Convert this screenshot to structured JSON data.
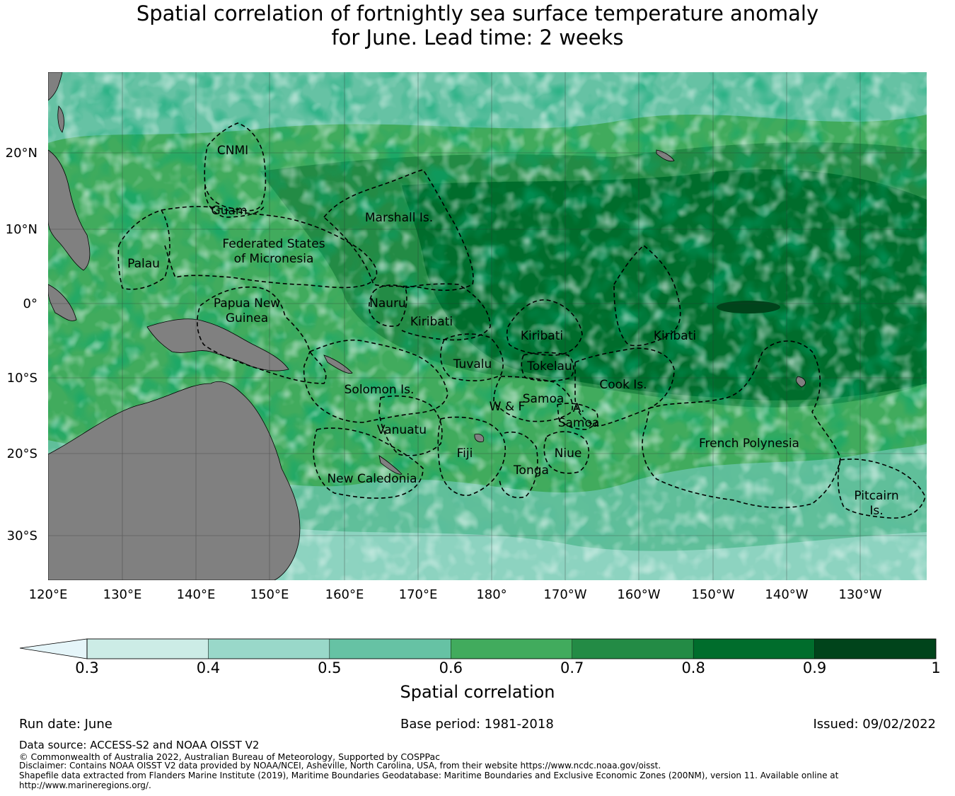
{
  "title": {
    "line1": "Spatial correlation of fortnightly sea surface temperature anomaly",
    "line2": "for June. Lead time: 2 weeks"
  },
  "map": {
    "lat_ticks": [
      "20°N",
      "10°N",
      "0°",
      "10°S",
      "20°S",
      "30°S"
    ],
    "lon_ticks": [
      "120°E",
      "130°E",
      "140°E",
      "150°E",
      "160°E",
      "170°E",
      "180°",
      "170°W",
      "160°W",
      "150°W",
      "140°W",
      "130°W"
    ],
    "labels": {
      "cnmi": "CNMI",
      "guam": "Guam",
      "marshall": "Marshall Is.",
      "fsm1": "Federated States",
      "fsm2": "of Micronesia",
      "palau": "Palau",
      "png1": "Papua New",
      "png2": "Guinea",
      "nauru": "Nauru",
      "kiribati_w": "Kiribati",
      "kiribati_c": "Kiribati",
      "kiribati_e": "Kiribati",
      "tuvalu": "Tuvalu",
      "tokelau": "Tokelau",
      "solomon": "Solomon Is.",
      "samoa": "Samoa",
      "wf": "W & F",
      "asamoa1": "A.",
      "asamoa2": "Samoa",
      "cook": "Cook Is.",
      "vanuatu": "Vanuatu",
      "fiji": "Fiji",
      "niue": "Niue",
      "tonga": "Tonga",
      "frpoly": "French Polynesia",
      "newcal": "New Caledonia",
      "pitcairn1": "Pitcairn",
      "pitcairn2": "Is."
    },
    "colors": {
      "land": "#808080",
      "grid": "#2f2f2f",
      "ocean_base": "#41ab5d"
    }
  },
  "colorbar": {
    "title": "Spatial correlation",
    "ticks": [
      "0.3",
      "0.4",
      "0.5",
      "0.6",
      "0.7",
      "0.8",
      "0.9",
      "1"
    ],
    "under_color": "#e5f5f9",
    "bins": [
      {
        "from": 0.3,
        "to": 0.4,
        "color": "#ccece6"
      },
      {
        "from": 0.4,
        "to": 0.5,
        "color": "#99d8c9"
      },
      {
        "from": 0.5,
        "to": 0.6,
        "color": "#66c2a4"
      },
      {
        "from": 0.6,
        "to": 0.7,
        "color": "#41ab5d"
      },
      {
        "from": 0.7,
        "to": 0.8,
        "color": "#238b45"
      },
      {
        "from": 0.8,
        "to": 0.9,
        "color": "#006d2c"
      },
      {
        "from": 0.9,
        "to": 1.0,
        "color": "#00441b"
      }
    ]
  },
  "meta": {
    "run_date": "Run date: June",
    "base_period": "Base period: 1981-2018",
    "issued": "Issued: 09/02/2022"
  },
  "footer": {
    "source": "Data source: ACCESS-S2 and NOAA OISST V2",
    "copyright": "© Commonwealth of Australia 2022, Australian Bureau of Meteorology, Supported by COSPPac",
    "disclaimer": "Disclaimer: Contains NOAA OISST V2 data provided by NOAA/NCEI, Asheville, North Carolina, USA, from their website https://www.ncdc.noaa.gov/oisst.",
    "shapefile1": "Shapefile data extracted from Flanders Marine Institute (2019), Maritime Boundaries Geodatabase: Maritime Boundaries and Exclusive Economic Zones (200NM), version 11. Available online at",
    "shapefile2": "http://www.marineregions.org/."
  }
}
